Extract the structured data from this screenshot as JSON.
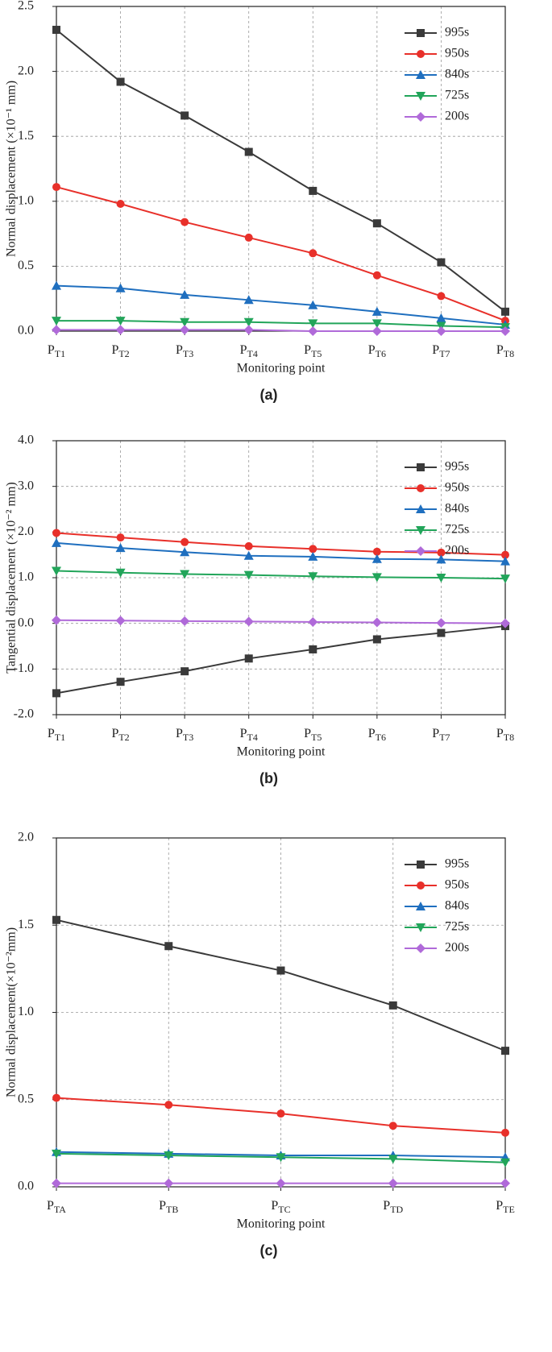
{
  "chart_data": [
    {
      "type": "line",
      "caption": "(a)",
      "ylabel": "Normal displacement (×10⁻¹ mm)",
      "xlabel": "Monitoring point",
      "categories": [
        "PT1",
        "PT2",
        "PT3",
        "PT4",
        "PT5",
        "PT6",
        "PT7",
        "PT8"
      ],
      "ylim": [
        0,
        2.5
      ],
      "yticks": [
        {
          "value": 0,
          "label": "0.0"
        },
        0.5,
        {
          "value": 1,
          "label": "1.0"
        },
        1.5,
        {
          "value": 2,
          "label": "2.0"
        },
        2.5
      ],
      "grid": true,
      "legend": "top-right",
      "series": [
        {
          "name": "995s",
          "color": "#3a3a3a",
          "marker": "square",
          "values": [
            2.32,
            1.92,
            1.66,
            1.38,
            1.08,
            0.83,
            0.53,
            0.15
          ]
        },
        {
          "name": "950s",
          "color": "#e8302a",
          "marker": "circle",
          "values": [
            1.11,
            0.98,
            0.84,
            0.72,
            0.6,
            0.43,
            0.27,
            0.08
          ]
        },
        {
          "name": "840s",
          "color": "#1f6fbf",
          "marker": "triangle-up",
          "values": [
            0.35,
            0.33,
            0.28,
            0.24,
            0.2,
            0.15,
            0.1,
            0.05
          ]
        },
        {
          "name": "725s",
          "color": "#22a55a",
          "marker": "triangle-down",
          "values": [
            0.08,
            0.08,
            0.07,
            0.07,
            0.06,
            0.06,
            0.04,
            0.03
          ]
        },
        {
          "name": "200s",
          "color": "#b06ad9",
          "marker": "diamond",
          "values": [
            0.01,
            0.01,
            0.01,
            0.01,
            0,
            0,
            0,
            0
          ]
        }
      ]
    },
    {
      "type": "line",
      "caption": "(b)",
      "ylabel": "Tangential displacement (×10⁻² mm)",
      "xlabel": "Monitoring point",
      "categories": [
        "PT1",
        "PT2",
        "PT3",
        "PT4",
        "PT5",
        "PT6",
        "PT7",
        "PT8"
      ],
      "ylim": [
        -2,
        4
      ],
      "yticks": [
        {
          "value": -2,
          "label": "-2.0"
        },
        {
          "value": -1,
          "label": "-1.0"
        },
        {
          "value": 0,
          "label": "0.0"
        },
        {
          "value": 1,
          "label": "1.0"
        },
        {
          "value": 2,
          "label": "2.0"
        },
        {
          "value": 3,
          "label": "3.0"
        },
        {
          "value": 4,
          "label": "4.0"
        }
      ],
      "grid": true,
      "legend": "top-right",
      "series": [
        {
          "name": "995s",
          "color": "#3a3a3a",
          "marker": "square",
          "values": [
            -1.53,
            -1.28,
            -1.05,
            -0.77,
            -0.57,
            -0.35,
            -0.21,
            -0.06
          ]
        },
        {
          "name": "950s",
          "color": "#e8302a",
          "marker": "circle",
          "values": [
            1.98,
            1.88,
            1.78,
            1.69,
            1.63,
            1.57,
            1.55,
            1.5
          ]
        },
        {
          "name": "840s",
          "color": "#1f6fbf",
          "marker": "triangle-up",
          "values": [
            1.76,
            1.65,
            1.56,
            1.48,
            1.46,
            1.41,
            1.4,
            1.36
          ]
        },
        {
          "name": "725s",
          "color": "#22a55a",
          "marker": "triangle-down",
          "values": [
            1.15,
            1.11,
            1.08,
            1.06,
            1.03,
            1.01,
            1,
            0.98
          ]
        },
        {
          "name": "200s",
          "color": "#b06ad9",
          "marker": "diamond",
          "values": [
            0.07,
            0.06,
            0.05,
            0.04,
            0.03,
            0.02,
            0.01,
            0
          ]
        }
      ]
    },
    {
      "type": "line",
      "caption": "(c)",
      "ylabel": "Normal displacement(×10⁻²mm)",
      "xlabel": "Monitoring point",
      "categories": [
        "PTA",
        "PTB",
        "PTC",
        "PTD",
        "PTE"
      ],
      "ylim": [
        0,
        2
      ],
      "yticks": [
        {
          "value": 0,
          "label": "0.0"
        },
        0.5,
        {
          "value": 1,
          "label": "1.0"
        },
        1.5,
        {
          "value": 2,
          "label": "2.0"
        }
      ],
      "grid": true,
      "legend": "top-right",
      "series": [
        {
          "name": "995s",
          "color": "#3a3a3a",
          "marker": "square",
          "values": [
            1.53,
            1.38,
            1.24,
            1.04,
            0.78
          ]
        },
        {
          "name": "950s",
          "color": "#e8302a",
          "marker": "circle",
          "values": [
            0.51,
            0.47,
            0.42,
            0.35,
            0.31
          ]
        },
        {
          "name": "840s",
          "color": "#1f6fbf",
          "marker": "triangle-up",
          "values": [
            0.2,
            0.19,
            0.18,
            0.18,
            0.17
          ]
        },
        {
          "name": "725s",
          "color": "#22a55a",
          "marker": "triangle-down",
          "values": [
            0.19,
            0.18,
            0.17,
            0.16,
            0.14
          ]
        },
        {
          "name": "200s",
          "color": "#b06ad9",
          "marker": "diamond",
          "values": [
            0.02,
            0.02,
            0.02,
            0.02,
            0.02
          ]
        }
      ]
    }
  ]
}
